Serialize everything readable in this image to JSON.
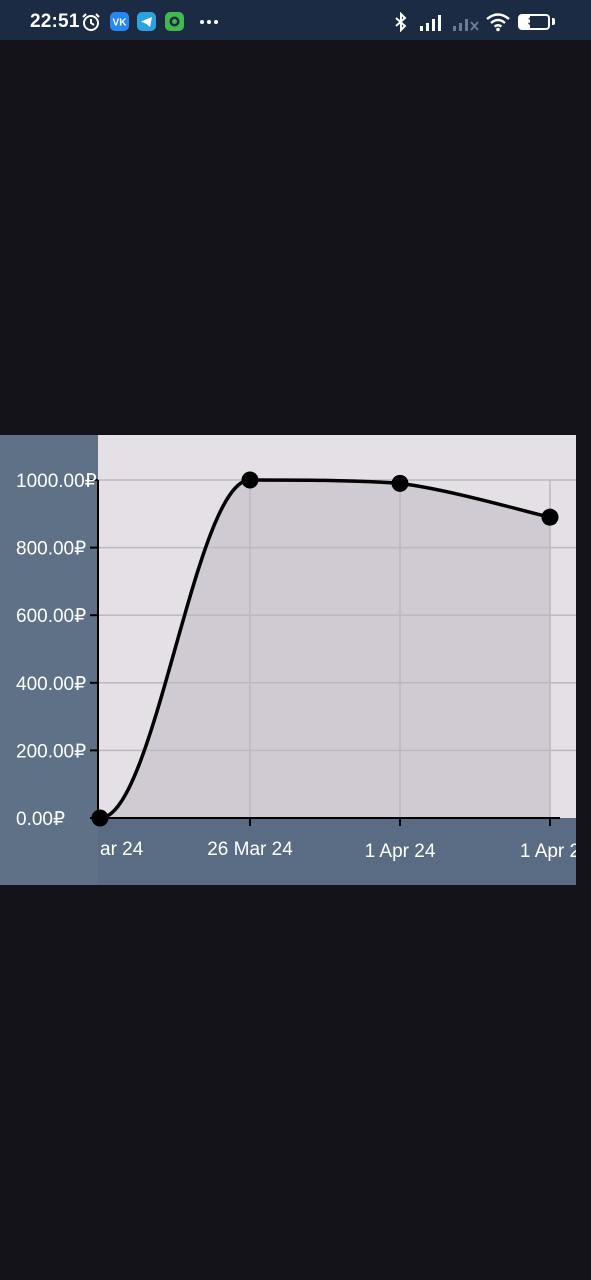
{
  "status_bar": {
    "time": "22:51",
    "battery_level": "37",
    "icons": [
      "alarm-icon",
      "vk-icon",
      "telegram-icon",
      "app-icon",
      "more-dots-icon",
      "bluetooth-icon",
      "signal-icon",
      "signal-x-icon",
      "wifi-icon",
      "battery-icon"
    ]
  },
  "colors": {
    "background": "#15131a",
    "status_bar": "#1b2b43",
    "plot_bg": "#e4e0e6",
    "area_fill": "#cdc8cf",
    "axis_panel": "#5a6c83",
    "line": "#000000"
  },
  "chart_data": {
    "type": "area",
    "x": [
      "ar 24",
      "26 Mar 24",
      "1 Apr 24",
      "1 Apr 2"
    ],
    "values": [
      0,
      1000,
      990,
      890
    ],
    "y_ticks": [
      "0.00₽",
      "200.00₽",
      "400.00₽",
      "600.00₽",
      "800.00₽",
      "1000.00₽"
    ],
    "ylim": [
      0,
      1000
    ],
    "grid": true,
    "smooth": true,
    "markers": true
  }
}
